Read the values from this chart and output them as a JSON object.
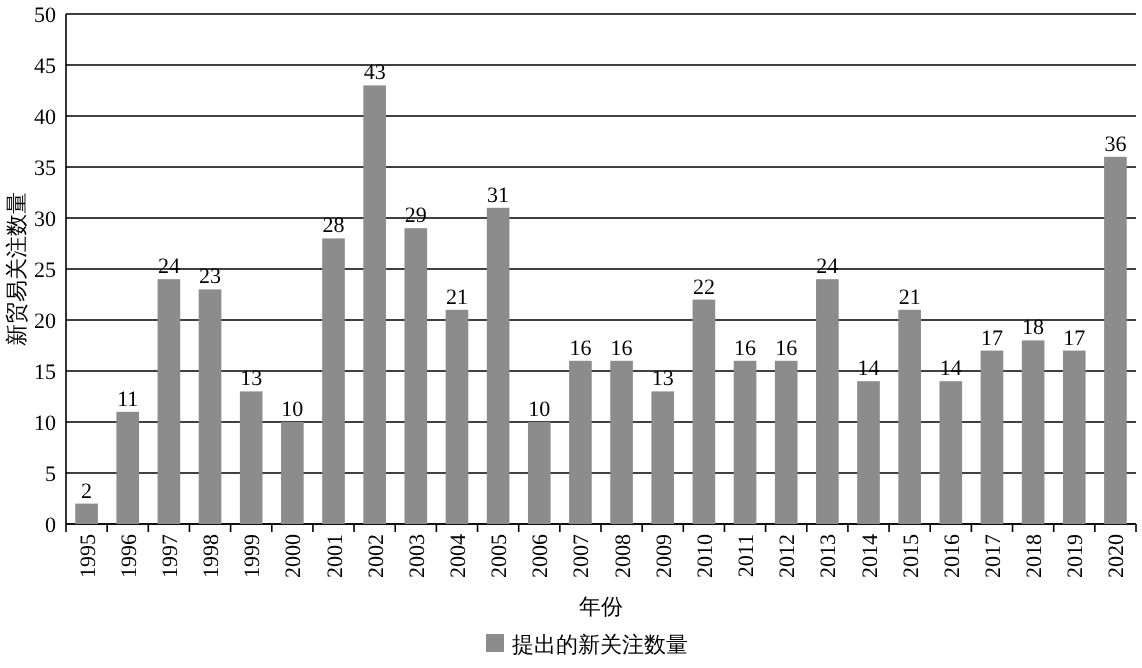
{
  "chart_data": {
    "type": "bar",
    "xlabel": "年份",
    "ylabel": "新贸易关注数量",
    "categories": [
      "1995",
      "1996",
      "1997",
      "1998",
      "1999",
      "2000",
      "2001",
      "2002",
      "2003",
      "2004",
      "2005",
      "2006",
      "2007",
      "2008",
      "2009",
      "2010",
      "2011",
      "2012",
      "2013",
      "2014",
      "2015",
      "2016",
      "2017",
      "2018",
      "2019",
      "2020"
    ],
    "series": [
      {
        "name": "提出的新关注数量",
        "color": "#8c8c8c",
        "values": [
          2,
          11,
          24,
          23,
          13,
          10,
          28,
          43,
          29,
          21,
          31,
          10,
          16,
          16,
          13,
          22,
          16,
          16,
          24,
          14,
          21,
          14,
          17,
          18,
          17,
          36
        ]
      }
    ],
    "ylim": [
      0,
      50
    ],
    "yticks": [
      0,
      5,
      10,
      15,
      20,
      25,
      30,
      35,
      40,
      45,
      50
    ],
    "grid": "y",
    "legend": "bottom",
    "data_labels": true
  }
}
